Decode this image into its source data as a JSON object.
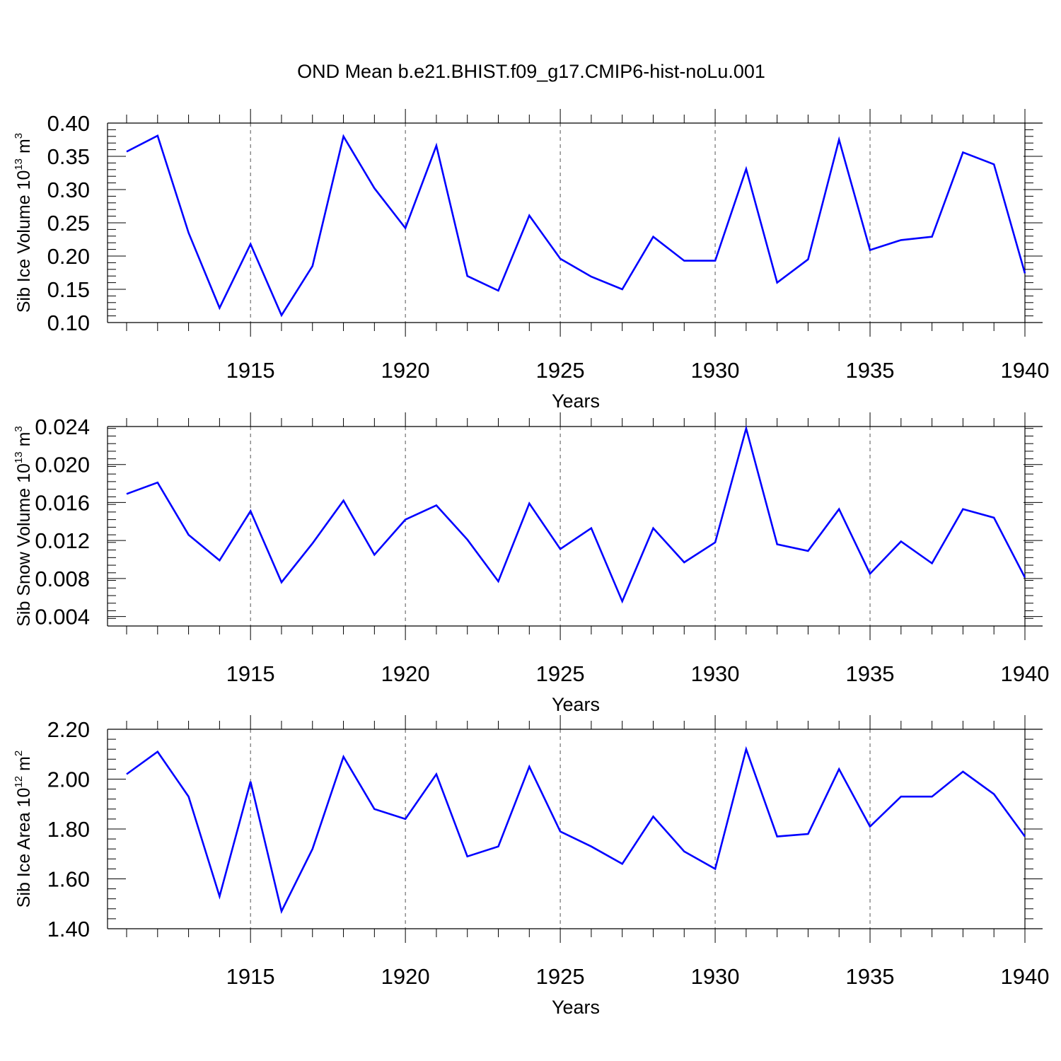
{
  "title": "OND Mean b.e21.BHIST.f09_g17.CMIP6-hist-noLu.001",
  "line_color": "#0000ff",
  "chart_data": [
    {
      "type": "line",
      "ylabel": {
        "main": "Sib Ice Volume 10",
        "exp": "13",
        "unit": " m",
        "unit_exp": "3"
      },
      "xlabel": "Years",
      "xlim": [
        1911,
        1940
      ],
      "ylim": [
        0.1,
        0.4
      ],
      "yticks": [
        0.1,
        0.15,
        0.2,
        0.25,
        0.3,
        0.35,
        0.4
      ],
      "ytick_labels": [
        "0.10",
        "0.15",
        "0.20",
        "0.25",
        "0.30",
        "0.35",
        "0.40"
      ],
      "xticks": [
        1915,
        1920,
        1925,
        1930,
        1935,
        1940
      ],
      "xtick_labels": [
        "1915",
        "1920",
        "1925",
        "1930",
        "1935",
        "1940"
      ],
      "x": [
        1911,
        1912,
        1913,
        1914,
        1915,
        1916,
        1917,
        1918,
        1919,
        1920,
        1921,
        1922,
        1923,
        1924,
        1925,
        1926,
        1927,
        1928,
        1929,
        1930,
        1931,
        1932,
        1933,
        1934,
        1935,
        1936,
        1937,
        1938,
        1939,
        1940
      ],
      "y": [
        0.357,
        0.381,
        0.235,
        0.122,
        0.218,
        0.111,
        0.185,
        0.38,
        0.302,
        0.242,
        0.366,
        0.17,
        0.148,
        0.261,
        0.196,
        0.169,
        0.15,
        0.229,
        0.193,
        0.193,
        0.331,
        0.16,
        0.195,
        0.375,
        0.209,
        0.224,
        0.229,
        0.356,
        0.338,
        0.174
      ]
    },
    {
      "type": "line",
      "ylabel": {
        "main": "Sib Snow Volume 10",
        "exp": "13",
        "unit": " m",
        "unit_exp": "3"
      },
      "xlabel": "Years",
      "xlim": [
        1911,
        1940
      ],
      "ylim": [
        0.003,
        0.024
      ],
      "yticks": [
        0.004,
        0.008,
        0.012,
        0.016,
        0.02,
        0.024
      ],
      "ytick_labels": [
        "0.004",
        "0.008",
        "0.012",
        "0.016",
        "0.020",
        "0.024"
      ],
      "xticks": [
        1915,
        1920,
        1925,
        1930,
        1935,
        1940
      ],
      "xtick_labels": [
        "1915",
        "1920",
        "1925",
        "1930",
        "1935",
        "1940"
      ],
      "x": [
        1911,
        1912,
        1913,
        1914,
        1915,
        1916,
        1917,
        1918,
        1919,
        1920,
        1921,
        1922,
        1923,
        1924,
        1925,
        1926,
        1927,
        1928,
        1929,
        1930,
        1931,
        1932,
        1933,
        1934,
        1935,
        1936,
        1937,
        1938,
        1939,
        1940
      ],
      "y": [
        0.0169,
        0.0181,
        0.0126,
        0.0099,
        0.0151,
        0.0076,
        0.0117,
        0.0162,
        0.0105,
        0.0142,
        0.0157,
        0.0121,
        0.0077,
        0.0159,
        0.0111,
        0.0133,
        0.0056,
        0.0133,
        0.0097,
        0.0118,
        0.0238,
        0.0116,
        0.0109,
        0.0153,
        0.0085,
        0.0119,
        0.0096,
        0.0153,
        0.0144,
        0.0081
      ]
    },
    {
      "type": "line",
      "ylabel": {
        "main": "Sib Ice Area 10",
        "exp": "12",
        "unit": " m",
        "unit_exp": "2"
      },
      "xlabel": "Years",
      "xlim": [
        1911,
        1940
      ],
      "ylim": [
        1.4,
        2.2
      ],
      "yticks": [
        1.4,
        1.6,
        1.8,
        2.0,
        2.2
      ],
      "ytick_labels": [
        "1.40",
        "1.60",
        "1.80",
        "2.00",
        "2.20"
      ],
      "xticks": [
        1915,
        1920,
        1925,
        1930,
        1935,
        1940
      ],
      "xtick_labels": [
        "1915",
        "1920",
        "1925",
        "1930",
        "1935",
        "1940"
      ],
      "x": [
        1911,
        1912,
        1913,
        1914,
        1915,
        1916,
        1917,
        1918,
        1919,
        1920,
        1921,
        1922,
        1923,
        1924,
        1925,
        1926,
        1927,
        1928,
        1929,
        1930,
        1931,
        1932,
        1933,
        1934,
        1935,
        1936,
        1937,
        1938,
        1939,
        1940
      ],
      "y": [
        2.02,
        2.11,
        1.93,
        1.53,
        1.99,
        1.47,
        1.72,
        2.09,
        1.88,
        1.84,
        2.02,
        1.69,
        1.73,
        2.05,
        1.79,
        1.73,
        1.66,
        1.85,
        1.71,
        1.64,
        2.12,
        1.77,
        1.78,
        2.04,
        1.81,
        1.93,
        1.93,
        2.03,
        1.94,
        1.77
      ]
    }
  ]
}
